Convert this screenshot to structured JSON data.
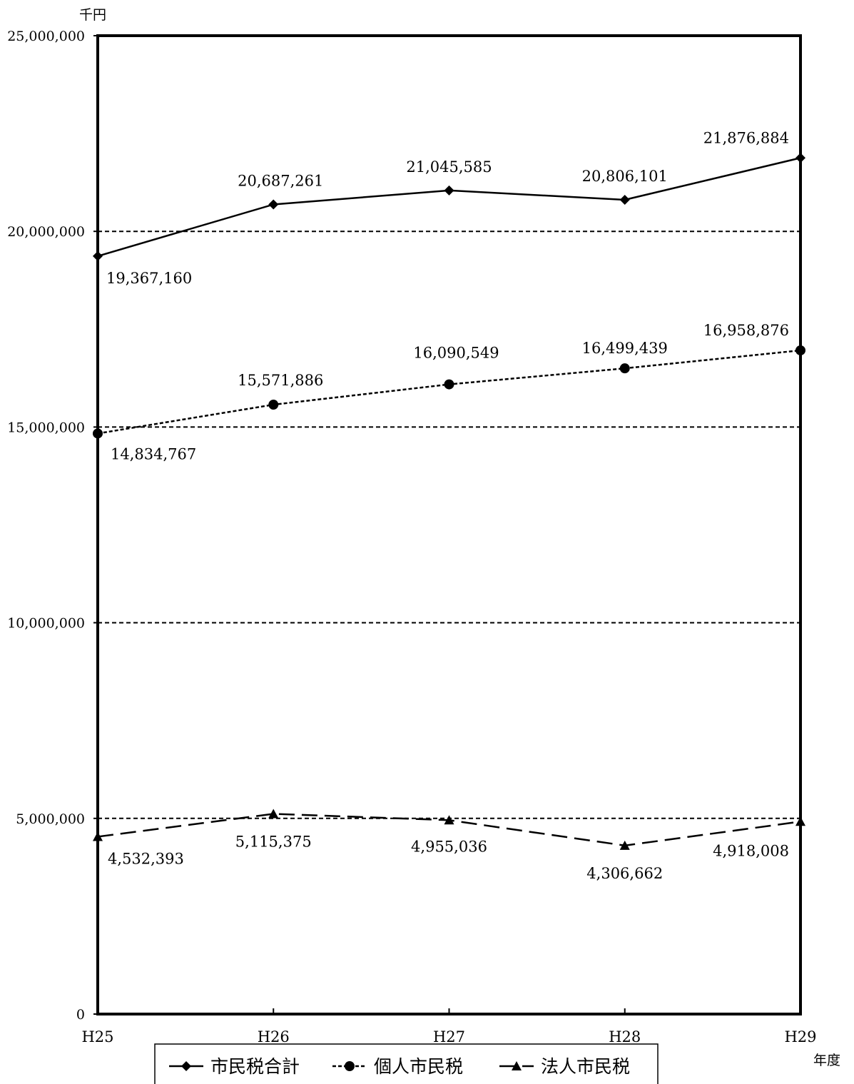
{
  "chart_data": {
    "type": "line",
    "y_unit": "千円",
    "x_unit": "年度",
    "categories": [
      "H25",
      "H26",
      "H27",
      "H28",
      "H29"
    ],
    "ylim": [
      0,
      25000000
    ],
    "y_ticks": [
      0,
      5000000,
      10000000,
      15000000,
      20000000,
      25000000
    ],
    "y_tick_labels": [
      "0",
      "5,000,000",
      "10,000,000",
      "15,000,000",
      "20,000,000",
      "25,000,000"
    ],
    "grid": "horizontal dashed",
    "legend_position": "bottom",
    "series": [
      {
        "name": "市民税合計",
        "values": [
          19367160,
          20687261,
          21045585,
          20806101,
          21876884
        ],
        "labels": [
          "19,367,160",
          "20,687,261",
          "21,045,585",
          "20,806,101",
          "21,876,884"
        ],
        "marker": "diamond",
        "line_style": "solid",
        "color": "#000000"
      },
      {
        "name": "個人市民税",
        "values": [
          14834767,
          15571886,
          16090549,
          16499439,
          16958876
        ],
        "labels": [
          "14,834,767",
          "15,571,886",
          "16,090,549",
          "16,499,439",
          "16,958,876"
        ],
        "marker": "circle",
        "line_style": "dotted",
        "color": "#000000"
      },
      {
        "name": "法人市民税",
        "values": [
          4532393,
          5115375,
          4955036,
          4306662,
          4918008
        ],
        "labels": [
          "4,532,393",
          "5,115,375",
          "4,955,036",
          "4,306,662",
          "4,918,008"
        ],
        "marker": "triangle",
        "line_style": "dashed",
        "color": "#000000"
      }
    ]
  }
}
